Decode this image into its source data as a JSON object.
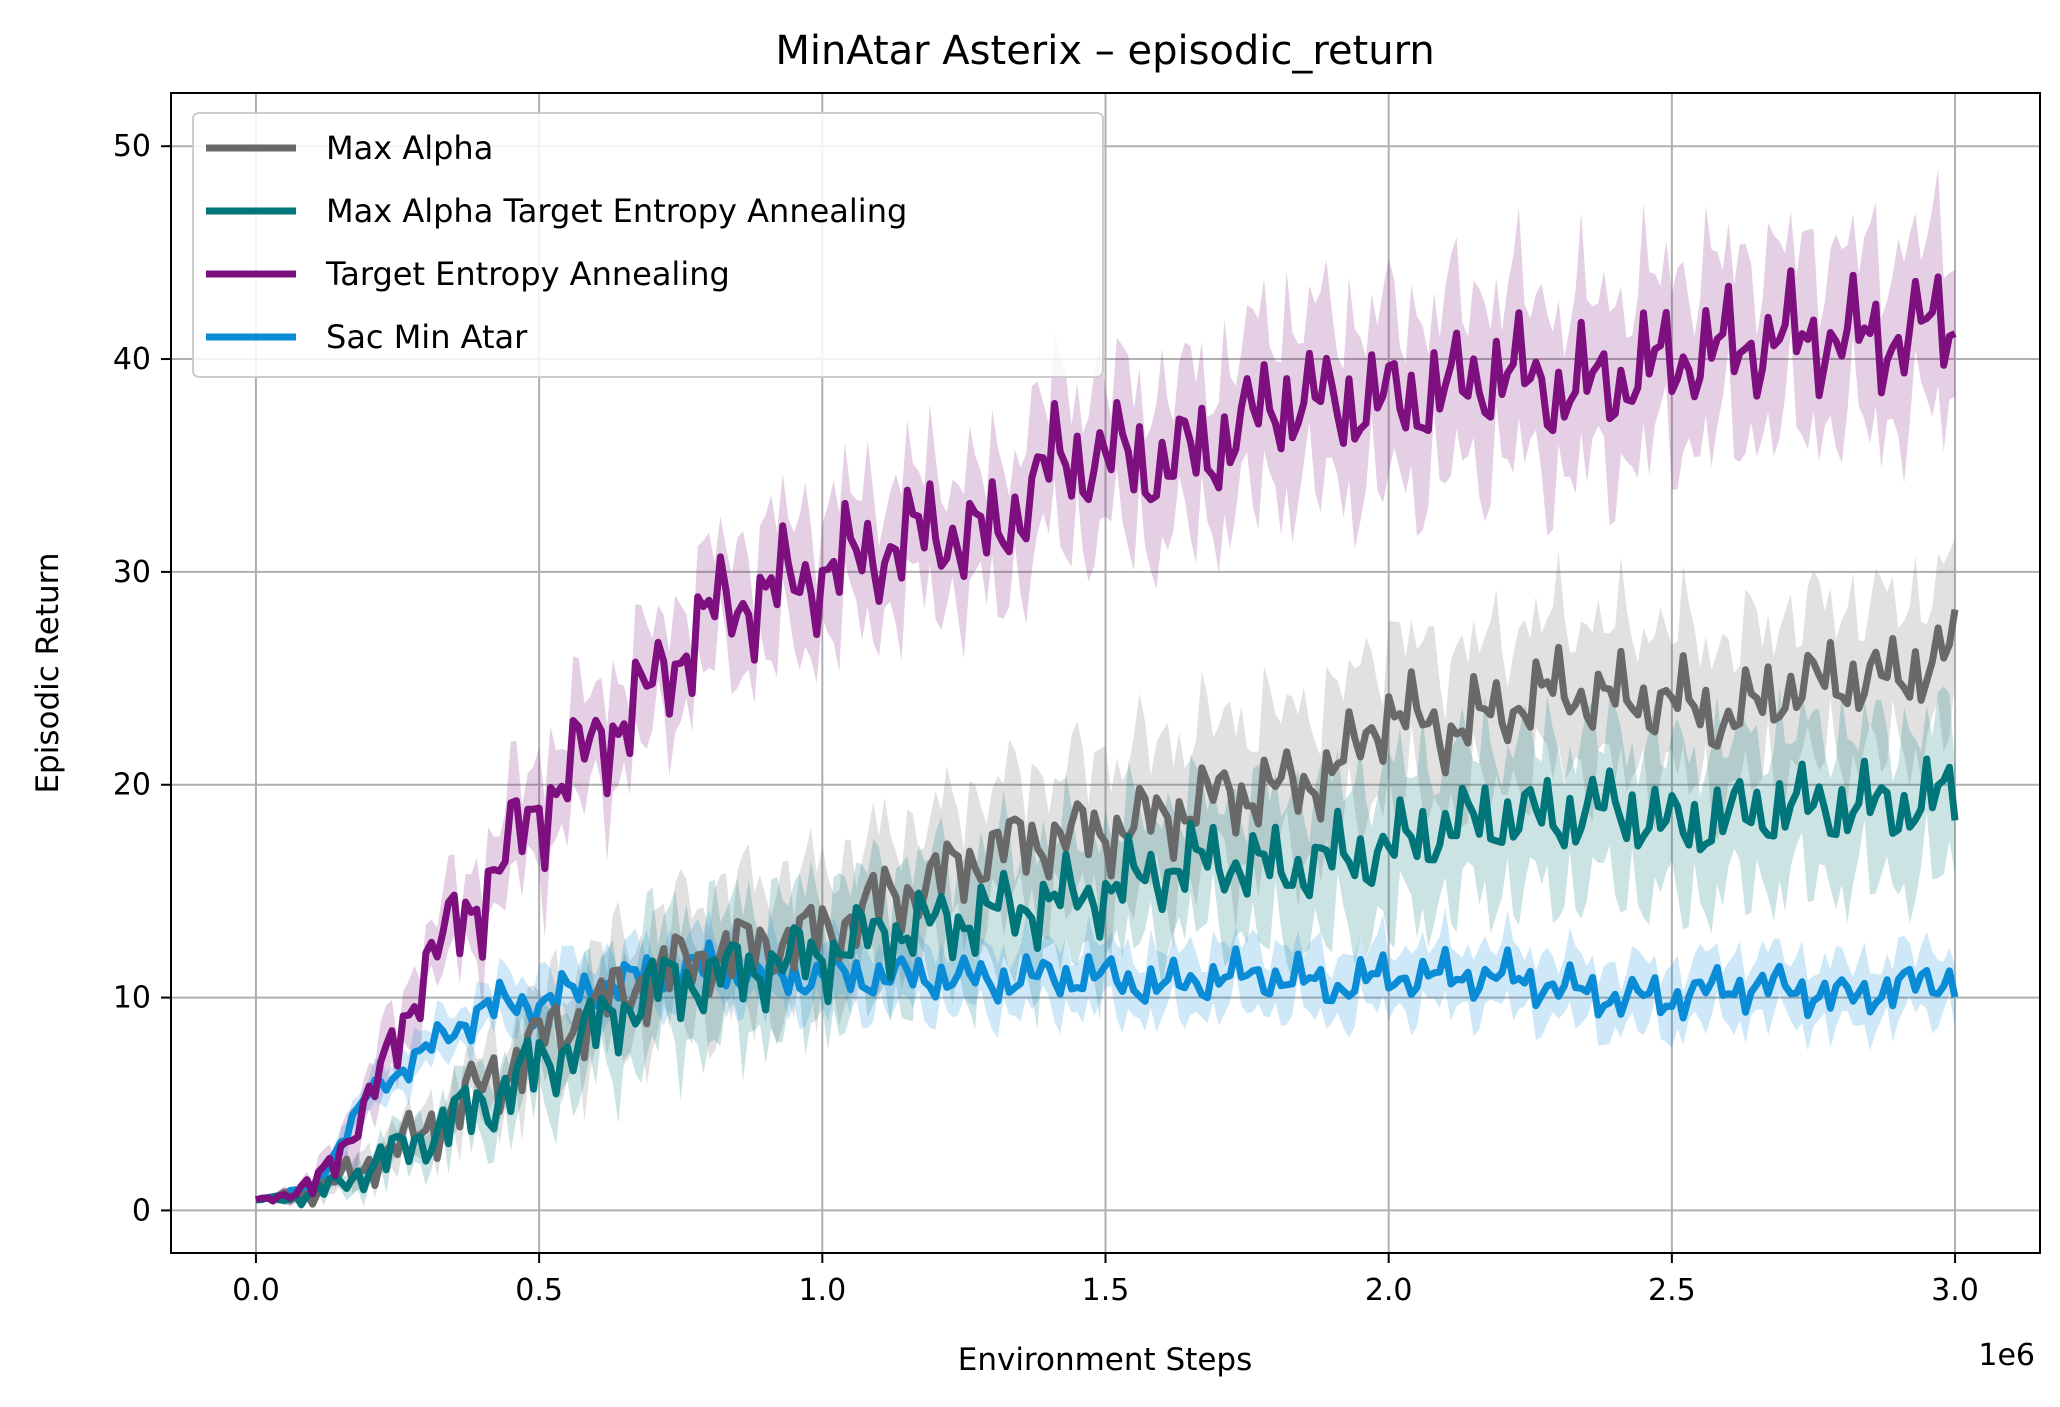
{
  "chart_data": {
    "type": "line",
    "title": "MinAtar Asterix – episodic_return",
    "xlabel": "Environment Steps",
    "ylabel": "Episodic Return",
    "x_offset_label": "1e6",
    "xlim": [
      -0.15,
      3.15
    ],
    "ylim": [
      -2,
      52.5
    ],
    "xticks": [
      0.0,
      0.5,
      1.0,
      1.5,
      2.0,
      2.5,
      3.0
    ],
    "xtick_labels": [
      "0.0",
      "0.5",
      "1.0",
      "1.5",
      "2.0",
      "2.5",
      "3.0"
    ],
    "yticks": [
      0,
      10,
      20,
      30,
      40,
      50
    ],
    "ytick_labels": [
      "0",
      "10",
      "20",
      "30",
      "40",
      "50"
    ],
    "grid": true,
    "legend_position": "top-left",
    "shaded_band": "variability range around each series",
    "x": [
      0.0,
      0.1,
      0.2,
      0.3,
      0.4,
      0.5,
      0.6,
      0.7,
      0.8,
      0.9,
      1.0,
      1.1,
      1.2,
      1.3,
      1.4,
      1.5,
      1.6,
      1.7,
      1.8,
      1.9,
      2.0,
      2.1,
      2.2,
      2.3,
      2.4,
      2.5,
      2.6,
      2.7,
      2.8,
      2.9,
      3.0
    ],
    "series": [
      {
        "name": "Max Alpha",
        "color": "#696969",
        "values": [
          0.5,
          0.8,
          2.2,
          3.8,
          5.8,
          8.0,
          9.5,
          11.0,
          12.0,
          12.5,
          13.0,
          14.5,
          15.5,
          17.0,
          17.5,
          17.8,
          18.5,
          19.5,
          19.8,
          20.5,
          23.5,
          22.5,
          23.5,
          24.5,
          24.0,
          24.0,
          23.0,
          24.5,
          25.0,
          25.0,
          26.5
        ],
        "spread": [
          0.1,
          0.3,
          0.8,
          1.0,
          1.5,
          2.0,
          2.5,
          2.5,
          3.0,
          3.0,
          3.0,
          3.0,
          3.0,
          3.0,
          3.0,
          3.5,
          3.5,
          3.5,
          3.5,
          3.5,
          3.5,
          3.5,
          3.5,
          3.5,
          3.5,
          3.5,
          3.5,
          3.5,
          3.5,
          3.5,
          3.5
        ]
      },
      {
        "name": "Max Alpha Target Entropy Annealing",
        "color": "#00757a",
        "values": [
          0.5,
          0.7,
          2.0,
          3.5,
          5.0,
          6.8,
          8.5,
          10.5,
          11.0,
          11.5,
          12.0,
          13.0,
          13.5,
          14.0,
          14.5,
          15.0,
          16.0,
          16.5,
          16.0,
          16.5,
          17.0,
          18.0,
          18.5,
          18.5,
          19.0,
          18.0,
          18.5,
          19.0,
          19.0,
          19.0,
          19.5
        ],
        "spread": [
          0.1,
          0.3,
          0.8,
          1.0,
          1.5,
          2.0,
          2.5,
          3.0,
          3.0,
          3.0,
          3.0,
          3.0,
          3.0,
          3.0,
          3.0,
          3.0,
          3.0,
          3.0,
          3.5,
          3.5,
          3.5,
          3.5,
          3.5,
          3.5,
          3.5,
          3.5,
          3.5,
          3.5,
          3.5,
          3.5,
          3.5
        ]
      },
      {
        "name": "Target Entropy Annealing",
        "color": "#7d0f7f",
        "values": [
          0.5,
          1.0,
          5.0,
          11.5,
          15.0,
          19.0,
          22.0,
          24.5,
          28.0,
          29.0,
          30.0,
          31.0,
          32.0,
          31.5,
          35.0,
          35.5,
          35.0,
          36.0,
          38.0,
          38.0,
          38.0,
          38.5,
          39.5,
          38.5,
          39.0,
          40.0,
          40.5,
          41.0,
          41.0,
          41.0,
          42.0
        ],
        "spread": [
          0.1,
          0.5,
          1.5,
          1.5,
          2.0,
          2.5,
          2.5,
          2.5,
          2.5,
          3.0,
          3.0,
          3.0,
          3.0,
          3.0,
          3.5,
          3.5,
          3.5,
          3.5,
          4.0,
          4.0,
          4.0,
          4.0,
          4.0,
          4.0,
          4.0,
          4.0,
          4.0,
          4.0,
          4.0,
          4.0,
          4.0
        ]
      },
      {
        "name": "Sac Min Atar",
        "color": "#0a8bd6",
        "values": [
          0.5,
          1.0,
          5.5,
          7.5,
          9.5,
          9.8,
          10.5,
          11.0,
          11.5,
          11.0,
          11.0,
          11.0,
          11.0,
          10.8,
          11.0,
          11.0,
          10.5,
          11.0,
          11.0,
          10.5,
          11.0,
          11.0,
          11.0,
          10.5,
          10.0,
          10.0,
          10.5,
          10.5,
          10.0,
          10.5,
          11.0
        ],
        "spread": [
          0.1,
          0.3,
          0.8,
          1.0,
          1.0,
          1.5,
          1.5,
          1.5,
          1.5,
          1.5,
          1.5,
          1.5,
          1.5,
          1.5,
          1.5,
          1.5,
          1.5,
          1.5,
          1.5,
          1.5,
          1.5,
          1.5,
          1.5,
          1.5,
          1.5,
          1.5,
          1.5,
          1.5,
          1.5,
          1.5,
          1.5
        ]
      }
    ]
  }
}
